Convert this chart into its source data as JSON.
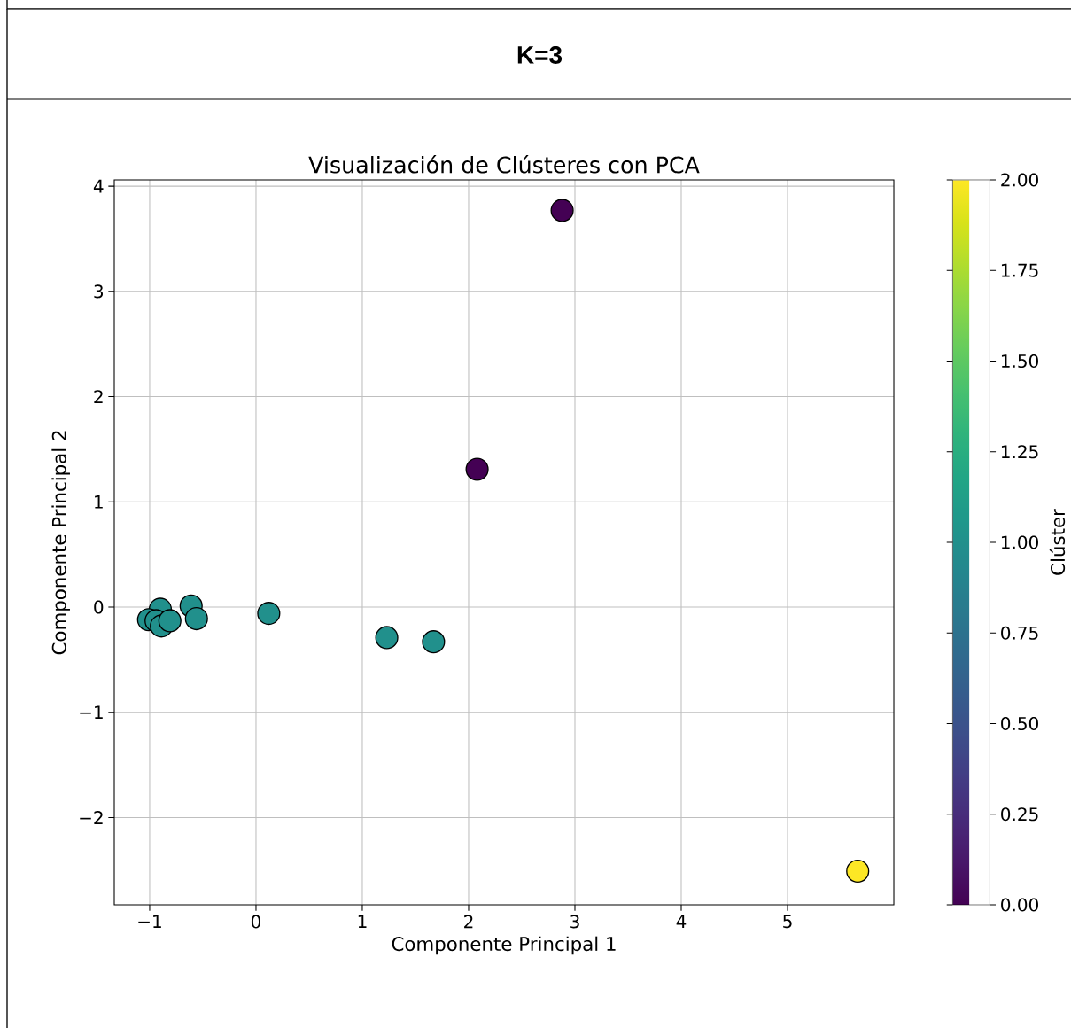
{
  "chart_data": {
    "type": "scatter",
    "title": "K=3",
    "subtitle": "Visualización de Clústeres con PCA",
    "xlabel": "Componente Principal 1",
    "ylabel": "Componente Principal 2",
    "clabel": "Clúster",
    "x": [
      -0.9,
      -1.01,
      -0.94,
      -0.89,
      -0.81,
      -0.61,
      -0.56,
      0.12,
      1.23,
      1.67,
      2.88,
      2.08,
      5.66
    ],
    "values": [
      -0.02,
      -0.12,
      -0.13,
      -0.18,
      -0.13,
      0.01,
      -0.11,
      -0.06,
      -0.29,
      -0.33,
      3.77,
      1.31,
      -2.51
    ],
    "cvalues": [
      1,
      1,
      1,
      1,
      1,
      1,
      1,
      1,
      1,
      1,
      0,
      0,
      2
    ],
    "clim": [
      0,
      2
    ],
    "cticks": [
      {
        "value": 0,
        "label": "0.00"
      },
      {
        "value": 0.25,
        "label": "0.25"
      },
      {
        "value": 0.5,
        "label": "0.50"
      },
      {
        "value": 0.75,
        "label": "0.75"
      },
      {
        "value": 1,
        "label": "1.00"
      },
      {
        "value": 1.25,
        "label": "1.25"
      },
      {
        "value": 1.5,
        "label": "1.50"
      },
      {
        "value": 1.75,
        "label": "1.75"
      },
      {
        "value": 2,
        "label": "2.00"
      }
    ],
    "xlim": [
      -1.333,
      6.0
    ],
    "ylim": [
      -2.83,
      4.06
    ],
    "xticks": [
      {
        "value": -1,
        "label": "−1"
      },
      0,
      1,
      2,
      3,
      4,
      5
    ],
    "yticks": [
      {
        "value": -2,
        "label": "−2"
      },
      {
        "value": -1,
        "label": "−1"
      },
      0,
      1,
      2,
      3,
      4
    ],
    "grid": true,
    "marker": "circle"
  }
}
